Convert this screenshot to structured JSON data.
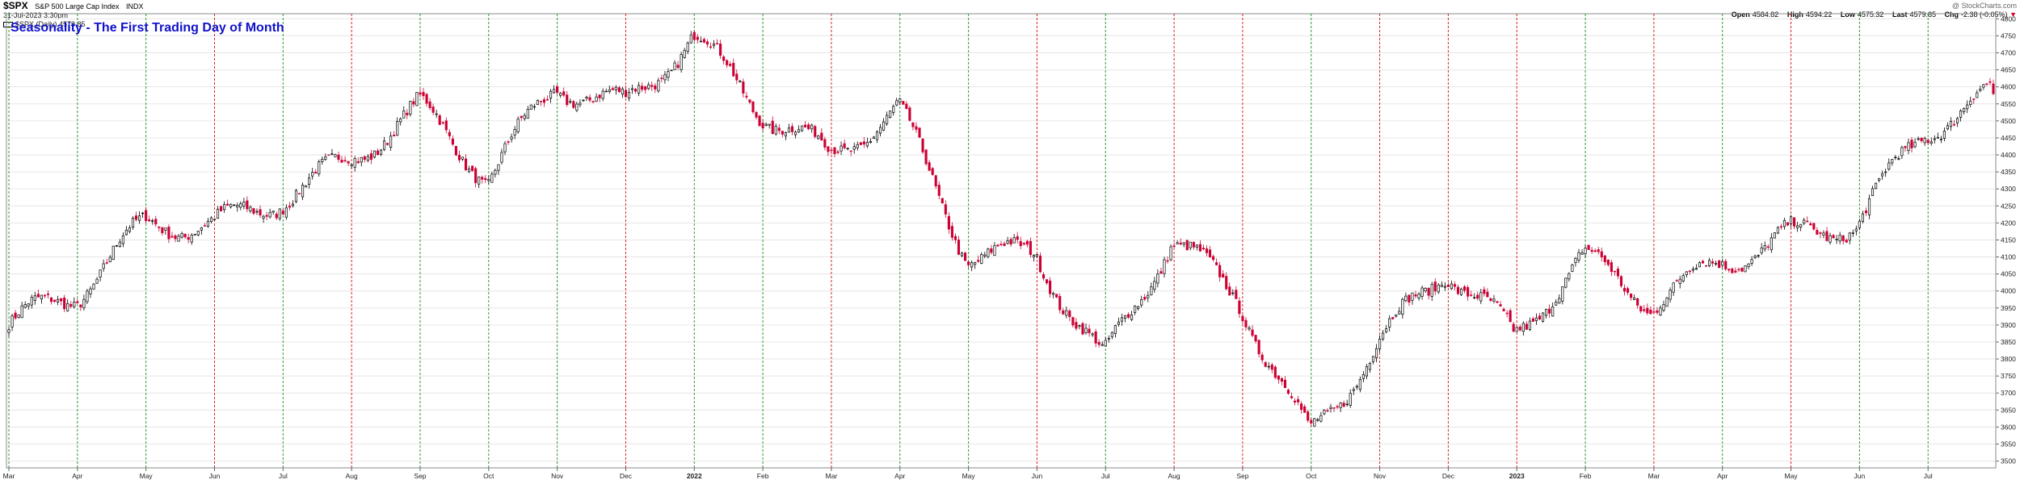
{
  "header": {
    "symbol": "$SPX",
    "name": "S&P 500 Large Cap Index",
    "exchange": "INDX",
    "timestamp": "31-Jul-2023 3:30pm",
    "legend_text": "$SPX (Daily) 4579.85",
    "brand": "@ StockCharts.com",
    "open_label": "Open",
    "open": "4584.82",
    "high_label": "High",
    "high": "4594.22",
    "low_label": "Low",
    "low": "4575.32",
    "last_label": "Last",
    "last": "4579.85",
    "chg_label": "Chg",
    "chg": "-2.38 (-0.05%)",
    "chg_arrow": "▼"
  },
  "colors": {
    "up": "#000000",
    "down": "#cc0033",
    "grid": "#e6e6e6",
    "first_day_up": "#2e9a2e",
    "first_day_down": "#dd2222",
    "title": "#1111cc"
  },
  "chart_data": {
    "type": "candlestick",
    "title": "Seasonality - The First Trading Day of Month",
    "y_axis": {
      "min": 3480,
      "max": 4815,
      "ticks": [
        3500,
        3550,
        3600,
        3650,
        3700,
        3750,
        3800,
        3850,
        3900,
        3950,
        4000,
        4050,
        4100,
        4150,
        4200,
        4250,
        4300,
        4350,
        4400,
        4450,
        4500,
        4550,
        4600,
        4650,
        4700,
        4750,
        4800
      ],
      "position": "right"
    },
    "grid": true,
    "months": [
      {
        "label": "Mar",
        "year": false,
        "first_day": "up"
      },
      {
        "label": "Apr",
        "year": false,
        "first_day": "up"
      },
      {
        "label": "May",
        "year": false,
        "first_day": "up"
      },
      {
        "label": "Jun",
        "year": false,
        "first_day": "down"
      },
      {
        "label": "Jul",
        "year": false,
        "first_day": "up"
      },
      {
        "label": "Aug",
        "year": false,
        "first_day": "down"
      },
      {
        "label": "Sep",
        "year": false,
        "first_day": "up"
      },
      {
        "label": "Oct",
        "year": false,
        "first_day": "up"
      },
      {
        "label": "Nov",
        "year": false,
        "first_day": "up"
      },
      {
        "label": "Dec",
        "year": false,
        "first_day": "down"
      },
      {
        "label": "2022",
        "year": true,
        "first_day": "up"
      },
      {
        "label": "Feb",
        "year": false,
        "first_day": "up"
      },
      {
        "label": "Mar",
        "year": false,
        "first_day": "down"
      },
      {
        "label": "Apr",
        "year": false,
        "first_day": "up"
      },
      {
        "label": "May",
        "year": false,
        "first_day": "up"
      },
      {
        "label": "Jun",
        "year": false,
        "first_day": "down"
      },
      {
        "label": "Jul",
        "year": false,
        "first_day": "up"
      },
      {
        "label": "Aug",
        "year": false,
        "first_day": "down"
      },
      {
        "label": "Sep",
        "year": false,
        "first_day": "down"
      },
      {
        "label": "Oct",
        "year": false,
        "first_day": "up"
      },
      {
        "label": "Nov",
        "year": false,
        "first_day": "down"
      },
      {
        "label": "Dec",
        "year": false,
        "first_day": "down"
      },
      {
        "label": "2023",
        "year": true,
        "first_day": "down"
      },
      {
        "label": "Feb",
        "year": false,
        "first_day": "up"
      },
      {
        "label": "Mar",
        "year": false,
        "first_day": "down"
      },
      {
        "label": "Apr",
        "year": false,
        "first_day": "up"
      },
      {
        "label": "May",
        "year": false,
        "first_day": "down"
      },
      {
        "label": "Jun",
        "year": false,
        "first_day": "up"
      },
      {
        "label": "Jul",
        "year": false,
        "first_day": "up"
      }
    ],
    "monthly_close": [
      3901,
      3970,
      4180,
      4205,
      4300,
      4395,
      4520,
      4310,
      4610,
      4570,
      4766,
      4515,
      4370,
      4530,
      4130,
      4130,
      3785,
      4130,
      3955,
      3585,
      3870,
      4070,
      3840,
      4080,
      3975,
      4110,
      4170,
      4180,
      4450,
      4580
    ],
    "trading_days": 609,
    "last_close": 4579.85,
    "range_start_index": 3858,
    "min_close": 3577.03,
    "max_close": 4796.56
  }
}
